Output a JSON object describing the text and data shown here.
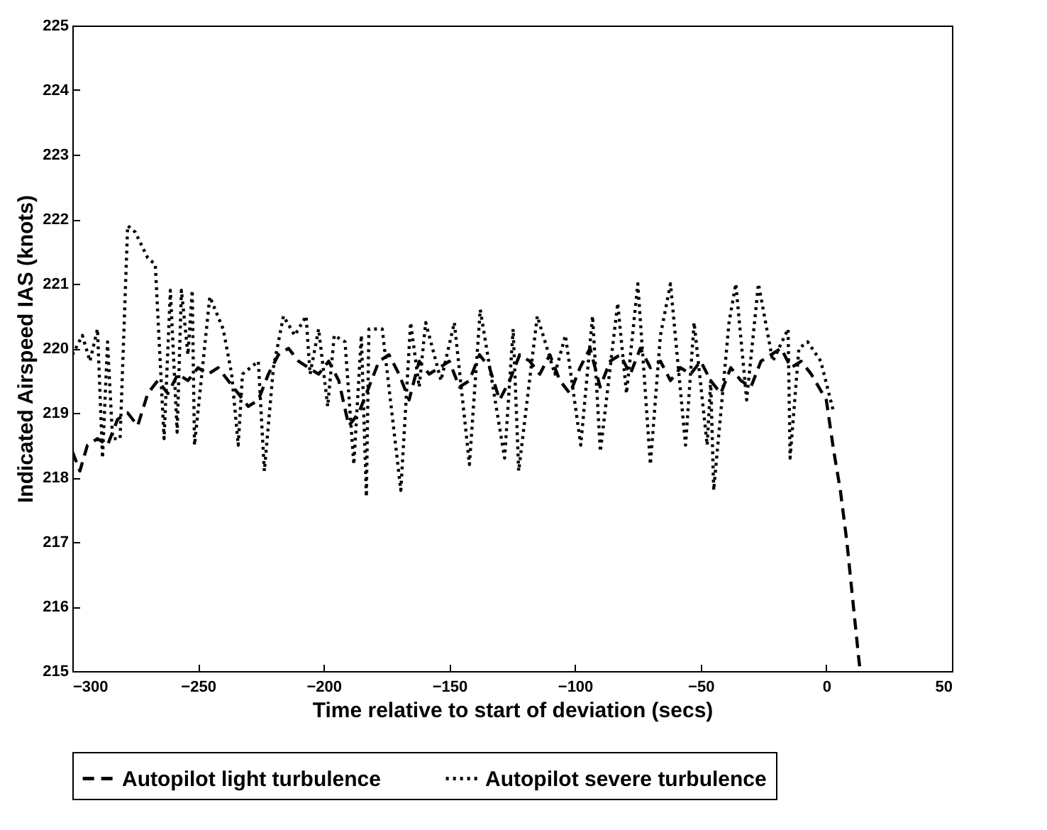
{
  "chart_data": {
    "type": "line",
    "xlabel": "Time relative to start of deviation (secs)",
    "ylabel": "Indicated Airspeed IAS (knots)",
    "xlim": [
      -300,
      50
    ],
    "xticks": [
      -300,
      -250,
      -200,
      -150,
      -100,
      -50,
      0,
      50
    ],
    "ylim": [
      215,
      225
    ],
    "yticks": [
      215,
      216,
      217,
      218,
      219,
      220,
      221,
      222,
      223,
      224,
      225
    ],
    "grid": false,
    "legend": "bottom",
    "series": [
      {
        "name": "Autopilot light turbulence",
        "color": "#000000",
        "line_style": "dashed",
        "x": [
          -300,
          -297,
          -294,
          -290,
          -286,
          -282,
          -278,
          -274,
          -270,
          -266,
          -262,
          -258,
          -254,
          -250,
          -246,
          -242,
          -238,
          -234,
          -230,
          -226,
          -222,
          -218,
          -214,
          -210,
          -206,
          -202,
          -198,
          -194,
          -190,
          -186,
          -182,
          -178,
          -174,
          -170,
          -166,
          -162,
          -158,
          -154,
          -150,
          -146,
          -142,
          -138,
          -134,
          -130,
          -126,
          -122,
          -118,
          -114,
          -110,
          -106,
          -102,
          -98,
          -94,
          -90,
          -86,
          -82,
          -78,
          -74,
          -70,
          -66,
          -62,
          -58,
          -54,
          -50,
          -46,
          -42,
          -38,
          -34,
          -30,
          -26,
          -22,
          -18,
          -14,
          -10,
          -6,
          -3,
          0,
          3,
          5.6,
          8.2,
          10.8,
          12.9,
          13.5
        ],
        "values": [
          218.4,
          218.1,
          218.5,
          218.6,
          218.5,
          218.9,
          219.0,
          218.8,
          219.3,
          219.5,
          219.3,
          219.6,
          219.5,
          219.7,
          219.6,
          219.7,
          219.5,
          219.3,
          219.1,
          219.2,
          219.6,
          219.9,
          220.0,
          219.8,
          219.7,
          219.6,
          219.8,
          219.5,
          218.8,
          219.0,
          219.4,
          219.8,
          219.9,
          219.6,
          219.2,
          219.8,
          219.6,
          219.7,
          219.8,
          219.4,
          219.5,
          219.9,
          219.7,
          219.2,
          219.5,
          219.9,
          219.8,
          219.6,
          219.9,
          219.5,
          219.3,
          219.7,
          220.0,
          219.4,
          219.8,
          219.9,
          219.6,
          220.0,
          219.7,
          219.8,
          219.5,
          219.7,
          219.6,
          219.8,
          219.5,
          219.3,
          219.7,
          219.5,
          219.4,
          219.8,
          219.9,
          220.0,
          219.7,
          219.8,
          219.6,
          219.4,
          219.2,
          218.4,
          217.8,
          217.0,
          216.0,
          215.2,
          215.0
        ]
      },
      {
        "name": "Autopilot severe turbulence",
        "color": "#000000",
        "line_style": "dotted",
        "x": [
          -300,
          -296,
          -293,
          -290,
          -288,
          -286,
          -284,
          -281,
          -278,
          -275,
          -270,
          -267,
          -263.5,
          -261,
          -258.3,
          -256.6,
          -254,
          -252.3,
          -251.4,
          -245.3,
          -240,
          -236.6,
          -234,
          -232.3,
          -226,
          -223.6,
          -220,
          -216,
          -211.5,
          -207,
          -205.4,
          -202,
          -198.4,
          -195.8,
          -191.5,
          -188,
          -185,
          -183,
          -182,
          -176.7,
          -169.3,
          -165.4,
          -162,
          -159.4,
          -153.3,
          -148,
          -142,
          -137.7,
          -128,
          -124.6,
          -122.4,
          -115,
          -108,
          -103.8,
          -97.7,
          -93,
          -89.9,
          -83,
          -79.5,
          -75,
          -70,
          -66,
          -62,
          -56,
          -52.6,
          -47.4,
          -46,
          -44.8,
          -38.7,
          -36,
          -31.7,
          -27,
          -21.3,
          -15.2,
          -14.4,
          -10.9,
          -7.4,
          -2.2,
          0.4,
          3
        ],
        "values": [
          219.9,
          220.2,
          219.8,
          220.3,
          218.3,
          220.1,
          218.6,
          218.6,
          221.9,
          221.8,
          221.4,
          221.3,
          218.6,
          220.9,
          218.7,
          220.9,
          219.9,
          220.9,
          218.5,
          220.8,
          220.3,
          219.6,
          218.5,
          219.6,
          219.8,
          218.1,
          219.7,
          220.5,
          220.2,
          220.5,
          219.6,
          220.3,
          219.1,
          220.2,
          220.1,
          218.2,
          220.2,
          217.7,
          220.3,
          220.3,
          217.8,
          220.4,
          219.4,
          220.4,
          219.5,
          220.4,
          218.2,
          220.6,
          218.3,
          220.3,
          218.1,
          220.5,
          219.6,
          220.2,
          218.5,
          220.5,
          218.4,
          220.7,
          219.3,
          221.0,
          218.2,
          220.2,
          221.0,
          218.5,
          220.4,
          218.5,
          219.5,
          217.8,
          220.4,
          221.0,
          219.2,
          221.0,
          219.8,
          220.3,
          218.3,
          220.0,
          220.1,
          219.8,
          219.4,
          219.0
        ]
      }
    ]
  }
}
